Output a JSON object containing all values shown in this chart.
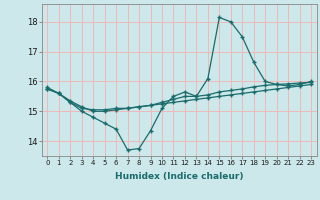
{
  "xlabel": "Humidex (Indice chaleur)",
  "background_color": "#cce8ea",
  "grid_color": "#f0b8b8",
  "line_color": "#1a6b6b",
  "xlim": [
    -0.5,
    23.5
  ],
  "ylim": [
    13.5,
    18.6
  ],
  "yticks": [
    14,
    15,
    16,
    17,
    18
  ],
  "xticks": [
    0,
    1,
    2,
    3,
    4,
    5,
    6,
    7,
    8,
    9,
    10,
    11,
    12,
    13,
    14,
    15,
    16,
    17,
    18,
    19,
    20,
    21,
    22,
    23
  ],
  "series": [
    {
      "x": [
        0,
        1,
        2,
        3,
        4,
        5,
        6,
        7,
        8,
        9,
        10,
        11,
        12,
        13,
        14,
        15,
        16,
        17,
        18,
        19,
        20,
        21,
        22,
        23
      ],
      "y": [
        15.8,
        15.6,
        15.3,
        15.0,
        14.8,
        14.6,
        14.4,
        13.7,
        13.75,
        14.35,
        15.1,
        15.5,
        15.65,
        15.5,
        16.1,
        18.15,
        18.0,
        17.5,
        16.65,
        16.0,
        15.9,
        15.85,
        15.9,
        16.0
      ]
    },
    {
      "x": [
        0,
        1,
        2,
        3,
        4,
        5,
        6,
        7,
        8,
        9,
        10,
        11,
        12,
        13,
        14,
        15,
        16,
        17,
        18,
        19,
        20,
        21,
        22,
        23
      ],
      "y": [
        15.75,
        15.6,
        15.3,
        15.1,
        15.05,
        15.05,
        15.1,
        15.1,
        15.15,
        15.2,
        15.25,
        15.3,
        15.35,
        15.4,
        15.45,
        15.5,
        15.55,
        15.6,
        15.65,
        15.7,
        15.75,
        15.8,
        15.85,
        15.9
      ]
    },
    {
      "x": [
        0,
        1,
        2,
        3,
        4,
        5,
        6,
        7,
        8,
        9,
        10,
        11,
        12,
        13,
        14,
        15,
        16,
        17,
        18,
        19,
        20,
        21,
        22,
        23
      ],
      "y": [
        15.75,
        15.6,
        15.35,
        15.15,
        15.0,
        15.0,
        15.05,
        15.1,
        15.15,
        15.2,
        15.3,
        15.4,
        15.5,
        15.5,
        15.55,
        15.65,
        15.7,
        15.75,
        15.82,
        15.87,
        15.9,
        15.92,
        15.95,
        15.97
      ]
    }
  ]
}
